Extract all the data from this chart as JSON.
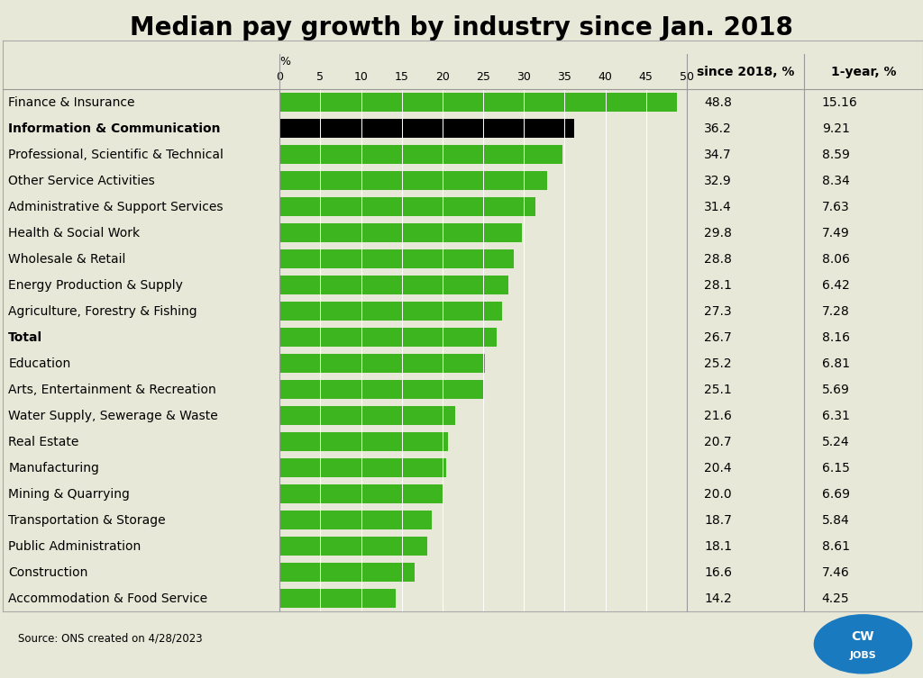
{
  "title": "Median pay growth by industry since Jan. 2018",
  "categories": [
    "Finance & Insurance",
    "Information & Communication",
    "Professional, Scientific & Technical",
    "Other Service Activities",
    "Administrative & Support Services",
    "Health & Social Work",
    "Wholesale & Retail",
    "Energy Production & Supply",
    "Agriculture, Forestry & Fishing",
    "Total",
    "Education",
    "Arts, Entertainment & Recreation",
    "Water Supply, Sewerage & Waste",
    "Real Estate",
    "Manufacturing",
    "Mining & Quarrying",
    "Transportation & Storage",
    "Public Administration",
    "Construction",
    "Accommodation & Food Service"
  ],
  "bold_categories": [
    "Information & Communication",
    "Total"
  ],
  "values": [
    48.8,
    36.2,
    34.7,
    32.9,
    31.4,
    29.8,
    28.8,
    28.1,
    27.3,
    26.7,
    25.2,
    25.1,
    21.6,
    20.7,
    20.4,
    20.0,
    18.7,
    18.1,
    16.6,
    14.2
  ],
  "since_2018": [
    "48.8",
    "36.2",
    "34.7",
    "32.9",
    "31.4",
    "29.8",
    "28.8",
    "28.1",
    "27.3",
    "26.7",
    "25.2",
    "25.1",
    "21.6",
    "20.7",
    "20.4",
    "20.0",
    "18.7",
    "18.1",
    "16.6",
    "14.2"
  ],
  "one_year": [
    "15.16",
    "9.21",
    "8.59",
    "8.34",
    "7.63",
    "7.49",
    "8.06",
    "6.42",
    "7.28",
    "8.16",
    "6.81",
    "5.69",
    "6.31",
    "5.24",
    "6.15",
    "6.69",
    "5.84",
    "8.61",
    "7.46",
    "4.25"
  ],
  "bar_color": "#3db51f",
  "special_bar_color": "#000000",
  "special_bar_index": 1,
  "xlim": [
    0,
    50
  ],
  "xticks": [
    0,
    5,
    10,
    15,
    20,
    25,
    30,
    35,
    40,
    45,
    50
  ],
  "xlabel": "%",
  "col1_header": "since 2018, %",
  "col2_header": "1-year, %",
  "source_text": "Source: ONS created on 4/28/2023",
  "bg_color": "#e8e8d8",
  "row_even_color": "#f0f0e0",
  "row_odd_color": "#e8e8d8",
  "header_bg_color": "#d4d4c4",
  "title_fontsize": 20,
  "label_fontsize": 10,
  "tick_fontsize": 9,
  "col_fontsize": 10,
  "value_fontsize": 10
}
